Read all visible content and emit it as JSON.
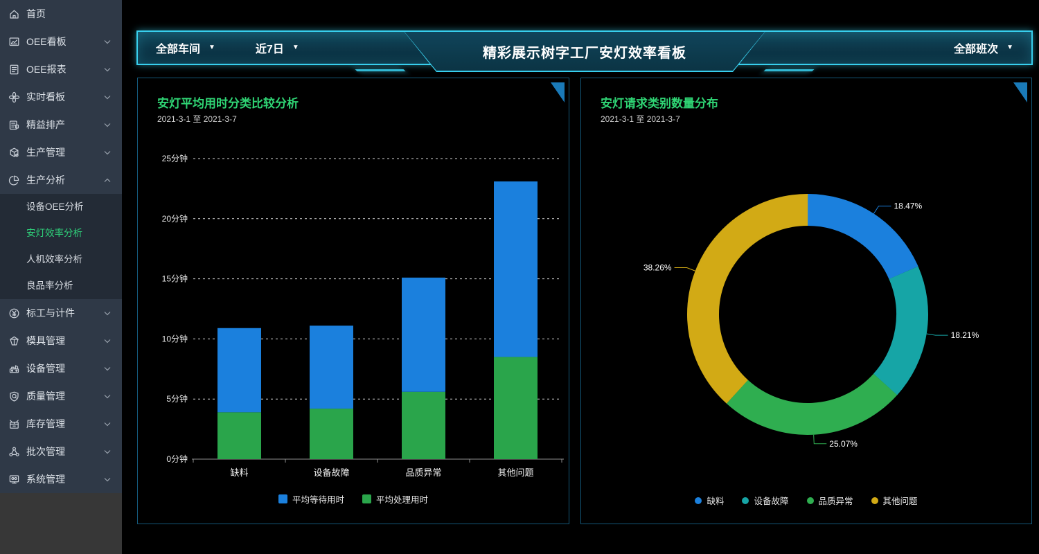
{
  "colors": {
    "accent_cyan": "#38cfee",
    "panel_border": "#14587a",
    "panel_title_green": "#2fd474",
    "corner_triangle_blue": "#1a7ab8",
    "sidebar_bg": "#2f3947",
    "sidebar_submenu_bg": "#232b36",
    "sidebar_active_green": "#2fd27b",
    "bar_blue": "#1b80dd",
    "bar_green": "#2aa54b",
    "donut_teal": "#16a5a6",
    "donut_yellow": "#d2aa15"
  },
  "sidebar": {
    "items": [
      {
        "id": "home",
        "label": "首页",
        "icon": "home-icon",
        "expandable": false
      },
      {
        "id": "oee-board",
        "label": "OEE看板",
        "icon": "dashboard-chart-icon",
        "expandable": true
      },
      {
        "id": "oee-report",
        "label": "OEE报表",
        "icon": "report-doc-icon",
        "expandable": true
      },
      {
        "id": "realtime-board",
        "label": "实时看板",
        "icon": "fan-icon",
        "expandable": true
      },
      {
        "id": "lean-scheduling",
        "label": "精益排产",
        "icon": "schedule-doc-icon",
        "expandable": true
      },
      {
        "id": "production-mgmt",
        "label": "生产管理",
        "icon": "production-box-icon",
        "expandable": true
      },
      {
        "id": "production-analysis",
        "label": "生产分析",
        "icon": "pie-icon",
        "expandable": true,
        "expanded": true,
        "children": [
          {
            "id": "device-oee-analysis",
            "label": "设备OEE分析",
            "active": false
          },
          {
            "id": "andon-efficiency-analysis",
            "label": "安灯效率分析",
            "active": true
          },
          {
            "id": "man-machine-efficiency-analysis",
            "label": "人机效率分析",
            "active": false
          },
          {
            "id": "yield-rate-analysis",
            "label": "良品率分析",
            "active": false
          }
        ]
      },
      {
        "id": "std-work-piecework",
        "label": "标工与计件",
        "icon": "yen-circle-icon",
        "expandable": true
      },
      {
        "id": "mold-mgmt",
        "label": "模具管理",
        "icon": "mold-box-icon",
        "expandable": true
      },
      {
        "id": "equipment-mgmt",
        "label": "设备管理",
        "icon": "machine-icon",
        "expandable": true
      },
      {
        "id": "quality-mgmt",
        "label": "质量管理",
        "icon": "shield-q-icon",
        "expandable": true
      },
      {
        "id": "inventory-mgmt",
        "label": "库存管理",
        "icon": "inventory-box-icon",
        "expandable": true
      },
      {
        "id": "batch-mgmt",
        "label": "批次管理",
        "icon": "batch-nodes-icon",
        "expandable": true
      },
      {
        "id": "system-mgmt",
        "label": "系统管理",
        "icon": "system-monitor-icon",
        "expandable": true
      }
    ]
  },
  "header": {
    "title": "精彩展示树字工厂安灯效率看板",
    "caret_glyph": "▼",
    "filters": [
      {
        "id": "workshop",
        "label": "全部车间"
      },
      {
        "id": "date-range",
        "label": "近7日"
      }
    ],
    "right_filter": {
      "id": "shift",
      "label": "全部班次"
    }
  },
  "chart_data": [
    {
      "type": "bar",
      "stacked": true,
      "title": "安灯平均用时分类比较分析",
      "subtitle": "2021-3-1 至 2021-3-7",
      "categories": [
        "缺料",
        "设备故障",
        "品质异常",
        "其他问题"
      ],
      "series": [
        {
          "name": "平均等待用时",
          "color": "#1b80dd",
          "values": [
            7.0,
            6.9,
            9.5,
            14.6
          ]
        },
        {
          "name": "平均处理用时",
          "color": "#2aa54b",
          "values": [
            3.9,
            4.2,
            5.6,
            8.5
          ]
        }
      ],
      "stack_note": "last series drawn at bottom of stack",
      "ylim": [
        0,
        25
      ],
      "ytick_step": 5,
      "ytick_suffix": "分钟",
      "grid": "dashed-horizontal",
      "legend_position": "bottom"
    },
    {
      "type": "donut",
      "title": "安灯请求类别数量分布",
      "subtitle": "2021-3-1 至 2021-3-7",
      "slices": [
        {
          "name": "缺料",
          "pct": 18.47,
          "color": "#1b80dd"
        },
        {
          "name": "设备故障",
          "pct": 18.21,
          "color": "#16a5a6"
        },
        {
          "name": "品质异常",
          "pct": 25.07,
          "color": "#2fae50"
        },
        {
          "name": "其他问题",
          "pct": 38.26,
          "color": "#d2aa15"
        }
      ],
      "start_angle": "12-oclock",
      "direction": "clockwise",
      "label_format": "percent-2dp",
      "legend_position": "bottom"
    }
  ]
}
